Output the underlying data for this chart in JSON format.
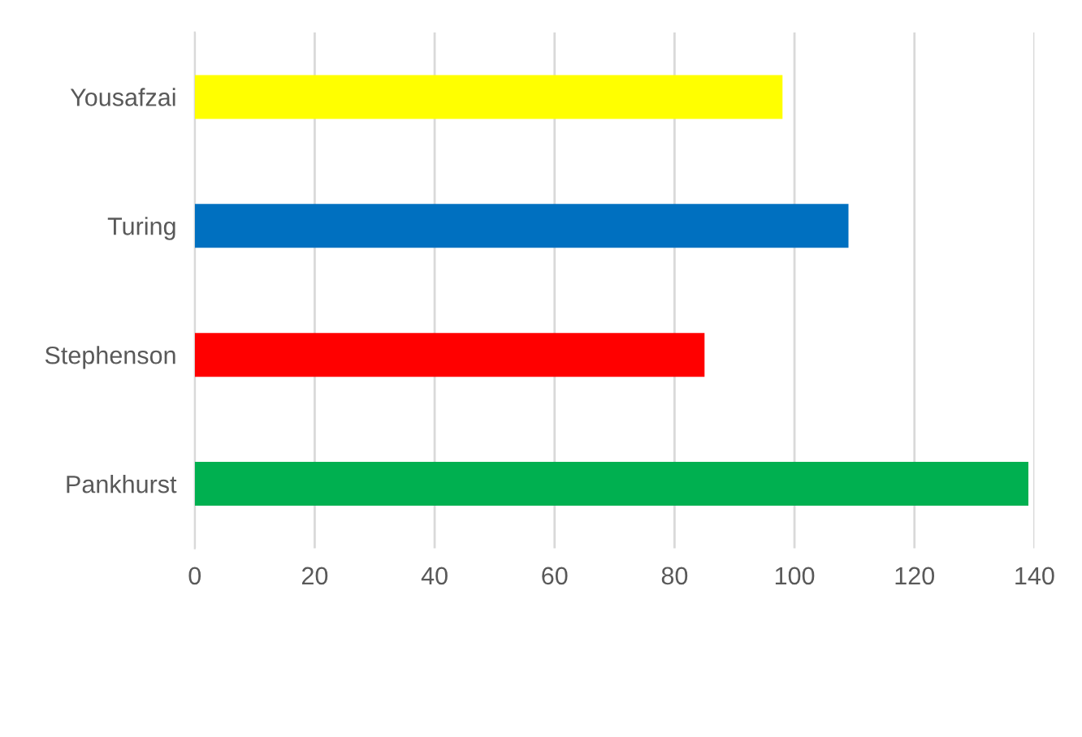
{
  "chart_data": {
    "type": "bar",
    "orientation": "horizontal",
    "categories": [
      "Yousafzai",
      "Turing",
      "Stephenson",
      "Pankhurst"
    ],
    "values": [
      98,
      109,
      85,
      139
    ],
    "colors": [
      "#ffff00",
      "#0070c0",
      "#ff0000",
      "#00b050"
    ],
    "xlim": [
      0,
      140
    ],
    "xticks": [
      0,
      20,
      40,
      60,
      80,
      100,
      120,
      140
    ],
    "grid": "x",
    "legend": false
  }
}
